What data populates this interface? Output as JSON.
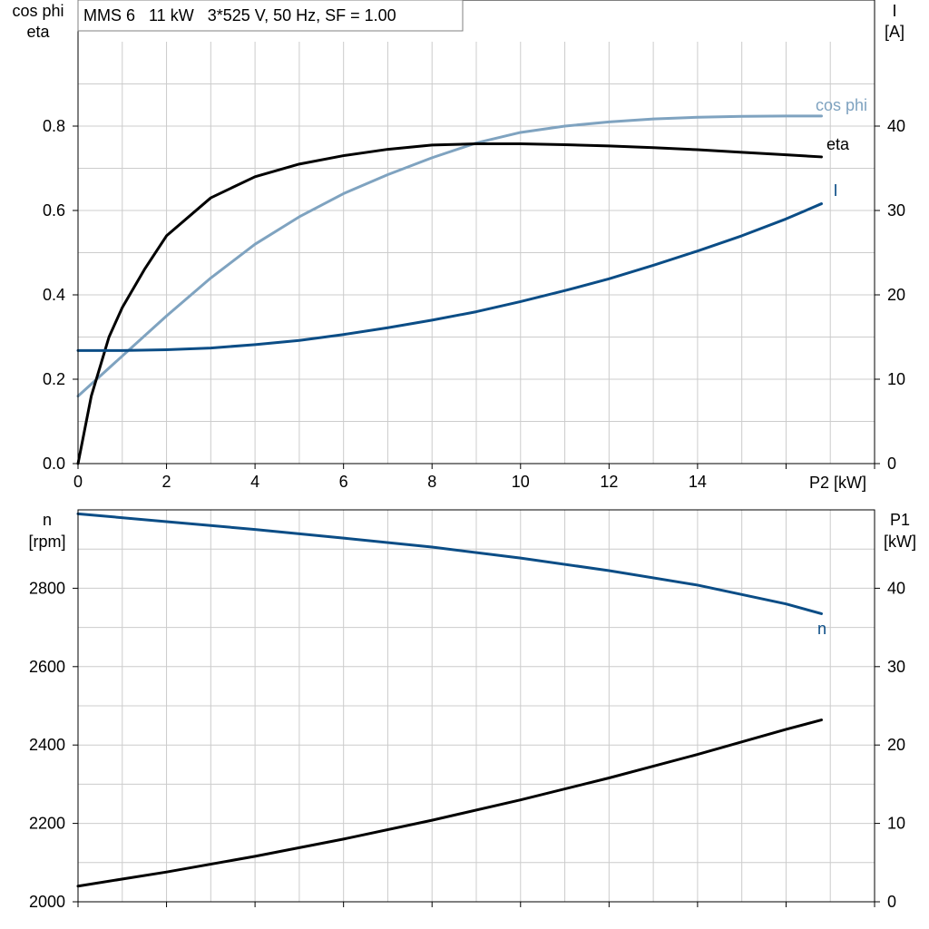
{
  "title": "MMS 6   11 kW   3*525 V, 50 Hz, SF = 1.00",
  "colors": {
    "black": "#000000",
    "blue": "#0b4d86",
    "light_blue": "#7fa3c0",
    "grid": "#cccccc"
  },
  "chart_data": [
    {
      "type": "line",
      "title": "MMS 6   11 kW   3*525 V, 50 Hz, SF = 1.00",
      "xlabel": "P2 [kW]",
      "xlim": [
        0,
        18
      ],
      "xticks": [
        "0",
        "2",
        "4",
        "6",
        "8",
        "10",
        "12",
        "14"
      ],
      "grid": true,
      "left_axis": {
        "label_lines": [
          "cos phi",
          "eta"
        ],
        "ylim": [
          0,
          1.0
        ],
        "ticks": [
          "0.0",
          "0.2",
          "0.4",
          "0.6",
          "0.8"
        ]
      },
      "right_axis": {
        "label_lines": [
          "I",
          "[A]"
        ],
        "ylim": [
          0,
          50
        ],
        "ticks": [
          "0",
          "10",
          "20",
          "30",
          "40"
        ]
      },
      "series": [
        {
          "name": "cos phi",
          "axis": "left",
          "color": "#7fa3c0",
          "x": [
            0,
            1,
            2,
            3,
            4,
            5,
            6,
            7,
            8,
            9,
            10,
            11,
            12,
            13,
            14,
            15,
            16,
            16.8
          ],
          "y": [
            0.16,
            0.255,
            0.35,
            0.44,
            0.52,
            0.585,
            0.64,
            0.685,
            0.725,
            0.76,
            0.785,
            0.8,
            0.81,
            0.817,
            0.821,
            0.823,
            0.824,
            0.824
          ]
        },
        {
          "name": "eta",
          "axis": "left",
          "color": "#000000",
          "x": [
            0,
            0.3,
            0.7,
            1,
            1.5,
            2,
            3,
            4,
            5,
            6,
            7,
            8,
            9,
            10,
            11,
            12,
            13,
            14,
            15,
            16,
            16.8
          ],
          "y": [
            0,
            0.16,
            0.3,
            0.37,
            0.46,
            0.54,
            0.63,
            0.68,
            0.71,
            0.73,
            0.745,
            0.755,
            0.758,
            0.758,
            0.756,
            0.753,
            0.749,
            0.744,
            0.738,
            0.732,
            0.727
          ]
        },
        {
          "name": "I",
          "axis": "right",
          "color": "#0b4d86",
          "x": [
            0,
            1,
            2,
            3,
            4,
            5,
            6,
            7,
            8,
            9,
            10,
            11,
            12,
            13,
            14,
            15,
            16,
            16.8
          ],
          "y": [
            13.4,
            13.4,
            13.5,
            13.7,
            14.1,
            14.6,
            15.3,
            16.1,
            17.0,
            18.0,
            19.2,
            20.5,
            21.9,
            23.5,
            25.2,
            27.0,
            29.0,
            30.8
          ]
        }
      ]
    },
    {
      "type": "line",
      "xlim": [
        0,
        18
      ],
      "grid": true,
      "left_axis": {
        "label_lines": [
          "n",
          "[rpm]"
        ],
        "ylim": [
          2000,
          3000
        ],
        "ticks": [
          "2000",
          "2200",
          "2400",
          "2600",
          "2800"
        ]
      },
      "right_axis": {
        "label_lines": [
          "P1",
          "[kW]"
        ],
        "ylim": [
          0,
          50
        ],
        "ticks": [
          "0",
          "10",
          "20",
          "30",
          "40"
        ]
      },
      "series": [
        {
          "name": "n",
          "axis": "left",
          "color": "#0b4d86",
          "x": [
            0,
            2,
            4,
            6,
            8,
            10,
            12,
            14,
            16,
            16.8
          ],
          "y": [
            2990,
            2970,
            2950,
            2928,
            2905,
            2877,
            2845,
            2808,
            2760,
            2735
          ]
        },
        {
          "axis": "right",
          "color": "#000000",
          "x": [
            0,
            2,
            4,
            6,
            8,
            10,
            12,
            14,
            16,
            16.8
          ],
          "y": [
            2.0,
            3.8,
            5.8,
            8.0,
            10.4,
            13.0,
            15.8,
            18.8,
            22.0,
            23.2
          ]
        }
      ]
    }
  ]
}
